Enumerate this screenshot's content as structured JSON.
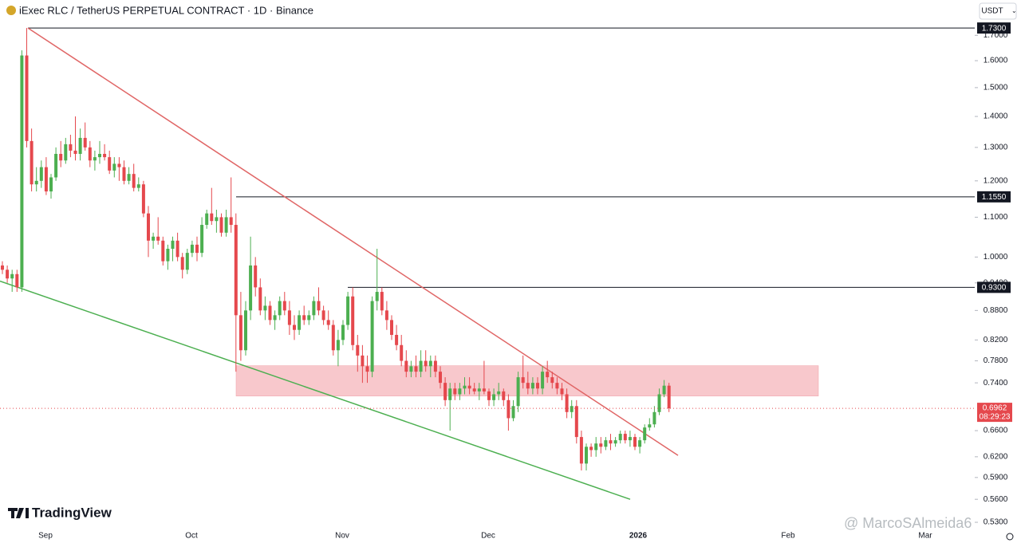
{
  "header": {
    "title": "iExec RLC / TetherUS PERPETUAL CONTRACT · 1D · Binance",
    "currency": "USDT"
  },
  "logo": "TradingView",
  "watermark": "@ MarcoSAlmeida6",
  "chart_data": {
    "type": "candlestick",
    "up_color": "#4caf50",
    "down_color": "#e5484d",
    "log_scale": true,
    "ylim": [
      0.525,
      1.85
    ],
    "yticks": [
      {
        "value": 1.7,
        "label": "1.7000"
      },
      {
        "value": 1.6,
        "label": "1.6000"
      },
      {
        "value": 1.5,
        "label": "1.5000"
      },
      {
        "value": 1.4,
        "label": "1.4000"
      },
      {
        "value": 1.3,
        "label": "1.3000"
      },
      {
        "value": 1.2,
        "label": "1.2000"
      },
      {
        "value": 1.1,
        "label": "1.1000"
      },
      {
        "value": 1.0,
        "label": "1.0000"
      },
      {
        "value": 0.94,
        "label": "0.9400"
      },
      {
        "value": 0.88,
        "label": "0.8800"
      },
      {
        "value": 0.82,
        "label": "0.8200"
      },
      {
        "value": 0.78,
        "label": "0.7800"
      },
      {
        "value": 0.74,
        "label": "0.7400"
      },
      {
        "value": 0.66,
        "label": "0.6600"
      },
      {
        "value": 0.62,
        "label": "0.6200"
      },
      {
        "value": 0.59,
        "label": "0.5900"
      },
      {
        "value": 0.56,
        "label": "0.5600"
      },
      {
        "value": 0.53,
        "label": "0.5300"
      }
    ],
    "x_labels": [
      "Sep",
      "Oct",
      "Nov",
      "Dec",
      "2026",
      "Feb",
      "Mar"
    ],
    "levels": [
      {
        "value": 1.73,
        "label": "1.7300"
      },
      {
        "value": 1.155,
        "label": "1.1550"
      },
      {
        "value": 0.93,
        "label": "0.9300"
      }
    ],
    "zone": {
      "low": 0.717,
      "high": 0.771,
      "color": "#f8c8cc"
    },
    "trendlines": [
      {
        "color": "#e06666",
        "values": [
          1.73,
          0.622
        ]
      },
      {
        "color": "#4caf50",
        "values": [
          0.944,
          0.56
        ]
      }
    ],
    "last_price": {
      "value": 0.6962,
      "label": "0.6962",
      "countdown": "08:29:23"
    },
    "candles": [
      [
        0.98,
        0.99,
        0.96,
        0.97
      ],
      [
        0.97,
        0.98,
        0.94,
        0.95
      ],
      [
        0.95,
        0.97,
        0.92,
        0.96
      ],
      [
        0.96,
        0.97,
        0.92,
        0.93
      ],
      [
        0.93,
        1.64,
        0.92,
        1.62
      ],
      [
        1.62,
        1.73,
        1.3,
        1.32
      ],
      [
        1.32,
        1.36,
        1.17,
        1.19
      ],
      [
        1.19,
        1.24,
        1.17,
        1.2
      ],
      [
        1.2,
        1.26,
        1.18,
        1.24
      ],
      [
        1.24,
        1.27,
        1.16,
        1.17
      ],
      [
        1.17,
        1.22,
        1.15,
        1.21
      ],
      [
        1.21,
        1.3,
        1.2,
        1.28
      ],
      [
        1.28,
        1.32,
        1.24,
        1.26
      ],
      [
        1.26,
        1.33,
        1.25,
        1.31
      ],
      [
        1.31,
        1.34,
        1.27,
        1.29
      ],
      [
        1.29,
        1.4,
        1.26,
        1.28
      ],
      [
        1.28,
        1.36,
        1.26,
        1.33
      ],
      [
        1.33,
        1.38,
        1.29,
        1.3
      ],
      [
        1.3,
        1.32,
        1.24,
        1.26
      ],
      [
        1.26,
        1.29,
        1.23,
        1.27
      ],
      [
        1.27,
        1.32,
        1.25,
        1.28
      ],
      [
        1.28,
        1.31,
        1.26,
        1.27
      ],
      [
        1.27,
        1.29,
        1.22,
        1.23
      ],
      [
        1.23,
        1.27,
        1.21,
        1.25
      ],
      [
        1.25,
        1.27,
        1.2,
        1.24
      ],
      [
        1.24,
        1.26,
        1.19,
        1.2
      ],
      [
        1.2,
        1.24,
        1.19,
        1.22
      ],
      [
        1.22,
        1.25,
        1.17,
        1.18
      ],
      [
        1.18,
        1.21,
        1.17,
        1.19
      ],
      [
        1.19,
        1.2,
        1.1,
        1.11
      ],
      [
        1.11,
        1.13,
        1.0,
        1.04
      ],
      [
        1.04,
        1.06,
        1.02,
        1.05
      ],
      [
        1.05,
        1.1,
        1.03,
        1.04
      ],
      [
        1.04,
        1.05,
        0.98,
        0.99
      ],
      [
        0.99,
        1.03,
        0.97,
        1.02
      ],
      [
        1.02,
        1.05,
        0.99,
        1.04
      ],
      [
        1.04,
        1.06,
        0.99,
        1.0
      ],
      [
        1.0,
        1.01,
        0.95,
        0.97
      ],
      [
        0.97,
        1.02,
        0.96,
        1.01
      ],
      [
        1.01,
        1.04,
        1.0,
        1.03
      ],
      [
        1.03,
        1.05,
        0.99,
        1.01
      ],
      [
        1.01,
        1.1,
        1.0,
        1.08
      ],
      [
        1.08,
        1.12,
        1.07,
        1.11
      ],
      [
        1.11,
        1.18,
        1.08,
        1.09
      ],
      [
        1.09,
        1.12,
        1.06,
        1.1
      ],
      [
        1.1,
        1.11,
        1.05,
        1.06
      ],
      [
        1.06,
        1.12,
        1.05,
        1.1
      ],
      [
        1.1,
        1.21,
        1.06,
        1.08
      ],
      [
        1.08,
        1.11,
        0.76,
        0.87
      ],
      [
        0.87,
        0.92,
        0.78,
        0.8
      ],
      [
        0.8,
        0.9,
        0.79,
        0.88
      ],
      [
        0.88,
        1.05,
        0.86,
        0.98
      ],
      [
        0.98,
        1.0,
        0.91,
        0.93
      ],
      [
        0.93,
        0.95,
        0.87,
        0.88
      ],
      [
        0.88,
        0.91,
        0.86,
        0.89
      ],
      [
        0.89,
        0.9,
        0.85,
        0.86
      ],
      [
        0.86,
        0.88,
        0.84,
        0.87
      ],
      [
        0.87,
        0.91,
        0.86,
        0.9
      ],
      [
        0.9,
        0.92,
        0.87,
        0.88
      ],
      [
        0.88,
        0.9,
        0.83,
        0.85
      ],
      [
        0.85,
        0.87,
        0.82,
        0.84
      ],
      [
        0.84,
        0.88,
        0.83,
        0.87
      ],
      [
        0.87,
        0.89,
        0.85,
        0.86
      ],
      [
        0.86,
        0.88,
        0.85,
        0.87
      ],
      [
        0.87,
        0.91,
        0.86,
        0.9
      ],
      [
        0.9,
        0.93,
        0.87,
        0.88
      ],
      [
        0.88,
        0.89,
        0.85,
        0.86
      ],
      [
        0.86,
        0.88,
        0.84,
        0.85
      ],
      [
        0.85,
        0.86,
        0.79,
        0.8
      ],
      [
        0.8,
        0.84,
        0.77,
        0.82
      ],
      [
        0.82,
        0.86,
        0.81,
        0.85
      ],
      [
        0.85,
        0.92,
        0.84,
        0.91
      ],
      [
        0.91,
        0.93,
        0.8,
        0.81
      ],
      [
        0.81,
        0.83,
        0.76,
        0.79
      ],
      [
        0.79,
        0.81,
        0.74,
        0.77
      ],
      [
        0.77,
        0.79,
        0.74,
        0.76
      ],
      [
        0.76,
        0.91,
        0.75,
        0.9
      ],
      [
        0.9,
        1.02,
        0.88,
        0.92
      ],
      [
        0.92,
        0.93,
        0.87,
        0.88
      ],
      [
        0.88,
        0.9,
        0.84,
        0.86
      ],
      [
        0.86,
        0.87,
        0.82,
        0.83
      ],
      [
        0.83,
        0.85,
        0.8,
        0.81
      ],
      [
        0.81,
        0.83,
        0.77,
        0.78
      ],
      [
        0.78,
        0.8,
        0.75,
        0.76
      ],
      [
        0.76,
        0.78,
        0.75,
        0.77
      ],
      [
        0.77,
        0.79,
        0.75,
        0.76
      ],
      [
        0.76,
        0.8,
        0.75,
        0.78
      ],
      [
        0.78,
        0.8,
        0.76,
        0.77
      ],
      [
        0.77,
        0.79,
        0.75,
        0.78
      ],
      [
        0.78,
        0.79,
        0.75,
        0.76
      ],
      [
        0.76,
        0.77,
        0.73,
        0.74
      ],
      [
        0.74,
        0.75,
        0.7,
        0.71
      ],
      [
        0.71,
        0.74,
        0.66,
        0.73
      ],
      [
        0.73,
        0.74,
        0.71,
        0.72
      ],
      [
        0.72,
        0.74,
        0.71,
        0.73
      ],
      [
        0.73,
        0.75,
        0.72,
        0.735
      ],
      [
        0.735,
        0.75,
        0.72,
        0.73
      ],
      [
        0.73,
        0.74,
        0.72,
        0.725
      ],
      [
        0.725,
        0.74,
        0.71,
        0.73
      ],
      [
        0.73,
        0.78,
        0.72,
        0.725
      ],
      [
        0.725,
        0.73,
        0.7,
        0.71
      ],
      [
        0.71,
        0.73,
        0.7,
        0.72
      ],
      [
        0.72,
        0.74,
        0.71,
        0.725
      ],
      [
        0.725,
        0.73,
        0.7,
        0.71
      ],
      [
        0.71,
        0.72,
        0.66,
        0.68
      ],
      [
        0.68,
        0.71,
        0.675,
        0.7
      ],
      [
        0.7,
        0.76,
        0.69,
        0.75
      ],
      [
        0.75,
        0.79,
        0.73,
        0.74
      ],
      [
        0.74,
        0.76,
        0.72,
        0.73
      ],
      [
        0.73,
        0.75,
        0.72,
        0.74
      ],
      [
        0.74,
        0.75,
        0.72,
        0.73
      ],
      [
        0.73,
        0.77,
        0.72,
        0.76
      ],
      [
        0.76,
        0.78,
        0.74,
        0.75
      ],
      [
        0.75,
        0.76,
        0.73,
        0.74
      ],
      [
        0.74,
        0.75,
        0.72,
        0.73
      ],
      [
        0.73,
        0.74,
        0.71,
        0.72
      ],
      [
        0.72,
        0.73,
        0.68,
        0.69
      ],
      [
        0.69,
        0.71,
        0.68,
        0.7
      ],
      [
        0.7,
        0.71,
        0.64,
        0.65
      ],
      [
        0.65,
        0.66,
        0.6,
        0.61
      ],
      [
        0.61,
        0.64,
        0.6,
        0.635
      ],
      [
        0.635,
        0.64,
        0.62,
        0.63
      ],
      [
        0.63,
        0.65,
        0.62,
        0.64
      ],
      [
        0.64,
        0.65,
        0.625,
        0.635
      ],
      [
        0.635,
        0.65,
        0.63,
        0.645
      ],
      [
        0.645,
        0.655,
        0.63,
        0.64
      ],
      [
        0.64,
        0.65,
        0.635,
        0.645
      ],
      [
        0.645,
        0.66,
        0.64,
        0.655
      ],
      [
        0.655,
        0.66,
        0.64,
        0.645
      ],
      [
        0.645,
        0.66,
        0.635,
        0.65
      ],
      [
        0.65,
        0.655,
        0.63,
        0.635
      ],
      [
        0.635,
        0.65,
        0.625,
        0.645
      ],
      [
        0.645,
        0.67,
        0.64,
        0.665
      ],
      [
        0.665,
        0.68,
        0.66,
        0.67
      ],
      [
        0.67,
        0.7,
        0.665,
        0.69
      ],
      [
        0.69,
        0.73,
        0.685,
        0.72
      ],
      [
        0.72,
        0.745,
        0.715,
        0.735
      ],
      [
        0.735,
        0.74,
        0.69,
        0.6962
      ]
    ]
  }
}
